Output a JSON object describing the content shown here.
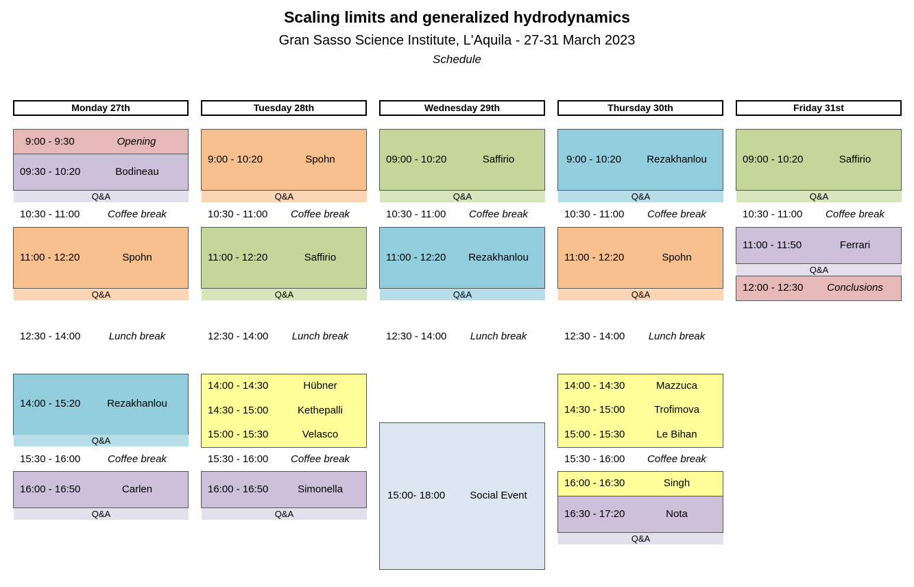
{
  "title": "Scaling limits and generalized hydrodynamics",
  "subtitle": "Gran Sasso Science Institute, L'Aquila - 27-31 March 2023",
  "schedule_label": "Schedule",
  "qa_label": "Q&A",
  "colors": {
    "orange": "#f8bf8f",
    "green": "#c4d79b",
    "blue": "#92cddd",
    "purple": "#ccc0da",
    "pink": "#e6b8b7",
    "yellow": "#ffff99",
    "social": "#dce6f1"
  },
  "days": [
    {
      "label": "Monday 27th",
      "slots": [
        {
          "time": "9:00 - 9:30",
          "name": "Opening"
        },
        {
          "time": "09:30 - 10:20",
          "name": "Bodineau"
        },
        {
          "time": "11:00 - 12:20",
          "name": "Spohn"
        },
        {
          "time": "14:00 - 15:20",
          "name": "Rezakhanlou"
        },
        {
          "time": "16:00 - 16:50",
          "name": "Carlen"
        }
      ],
      "breaks": [
        {
          "time": "10:30 - 11:00",
          "name": "Coffee break"
        },
        {
          "time": "12:30 - 14:00",
          "name": "Lunch break"
        },
        {
          "time": "15:30 - 16:00",
          "name": "Coffee break"
        }
      ]
    },
    {
      "label": "Tuesday 28th",
      "slots": [
        {
          "time": "9:00 - 10:20",
          "name": "Spohn"
        },
        {
          "time": "11:00 - 12:20",
          "name": "Saffirio"
        },
        {
          "time": "14:00 - 14:30",
          "name": "Hübner"
        },
        {
          "time": "14:30 - 15:00",
          "name": "Kethepalli"
        },
        {
          "time": "15:00 - 15:30",
          "name": "Velasco"
        },
        {
          "time": "16:00 - 16:50",
          "name": "Simonella"
        }
      ],
      "breaks": [
        {
          "time": "10:30 - 11:00",
          "name": "Coffee break"
        },
        {
          "time": "12:30 - 14:00",
          "name": "Lunch break"
        },
        {
          "time": "15:30 - 16:00",
          "name": "Coffee break"
        }
      ]
    },
    {
      "label": "Wednesday 29th",
      "slots": [
        {
          "time": "09:00 - 10:20",
          "name": "Saffirio"
        },
        {
          "time": "11:00 - 12:20",
          "name": "Rezakhanlou"
        },
        {
          "time": "15:00- 18:00",
          "name": "Social Event"
        }
      ],
      "breaks": [
        {
          "time": "10:30 - 11:00",
          "name": "Coffee break"
        },
        {
          "time": "12:30 - 14:00",
          "name": "Lunch break"
        }
      ]
    },
    {
      "label": "Thursday 30th",
      "slots": [
        {
          "time": "9:00 - 10:20",
          "name": "Rezakhanlou"
        },
        {
          "time": "11:00 - 12:20",
          "name": "Spohn"
        },
        {
          "time": "14:00 - 14:30",
          "name": "Mazzuca"
        },
        {
          "time": "14:30 - 15:00",
          "name": "Trofimova"
        },
        {
          "time": "15:00 - 15:30",
          "name": "Le Bihan"
        },
        {
          "time": "16:00 - 16:30",
          "name": "Singh"
        },
        {
          "time": "16:30 - 17:20",
          "name": "Nota"
        }
      ],
      "breaks": [
        {
          "time": "10:30 - 11:00",
          "name": "Coffee break"
        },
        {
          "time": "12:30 - 14:00",
          "name": "Lunch break"
        },
        {
          "time": "15:30 - 16:00",
          "name": "Coffee break"
        }
      ]
    },
    {
      "label": "Friday 31st",
      "slots": [
        {
          "time": "09:00 - 10:20",
          "name": "Saffirio"
        },
        {
          "time": "11:00 - 11:50",
          "name": "Ferrari"
        },
        {
          "time": "12:00 - 12:30",
          "name": "Conclusions"
        }
      ],
      "breaks": [
        {
          "time": "10:30 - 11:00",
          "name": "Coffee break"
        }
      ]
    }
  ]
}
